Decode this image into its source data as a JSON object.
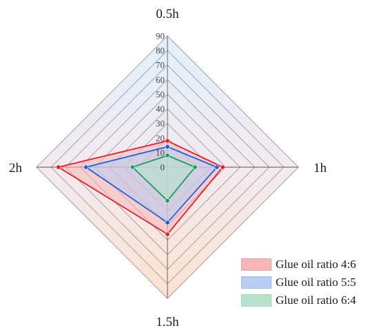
{
  "chart_data": {
    "type": "radar",
    "axes": [
      "0.5h",
      "1h",
      "1.5h",
      "2h"
    ],
    "rlim": [
      0,
      90
    ],
    "ticks": [
      0,
      10,
      20,
      30,
      40,
      50,
      60,
      70,
      80,
      90
    ],
    "grid": true,
    "legend_position": "bottom-right",
    "series": [
      {
        "name": "Glue oil ratio 4:6",
        "values": [
          18,
          38,
          46,
          75
        ],
        "color": "#ee1c25",
        "fill": "#f7b6b8"
      },
      {
        "name": "Glue oil ratio 5:5",
        "values": [
          14,
          34,
          38,
          56
        ],
        "color": "#1f5fe0",
        "fill": "#b7cdf3"
      },
      {
        "name": "Glue oil ratio 6:4",
        "values": [
          8,
          19,
          23,
          24
        ],
        "color": "#17a05a",
        "fill": "#b5e4cb"
      }
    ]
  }
}
